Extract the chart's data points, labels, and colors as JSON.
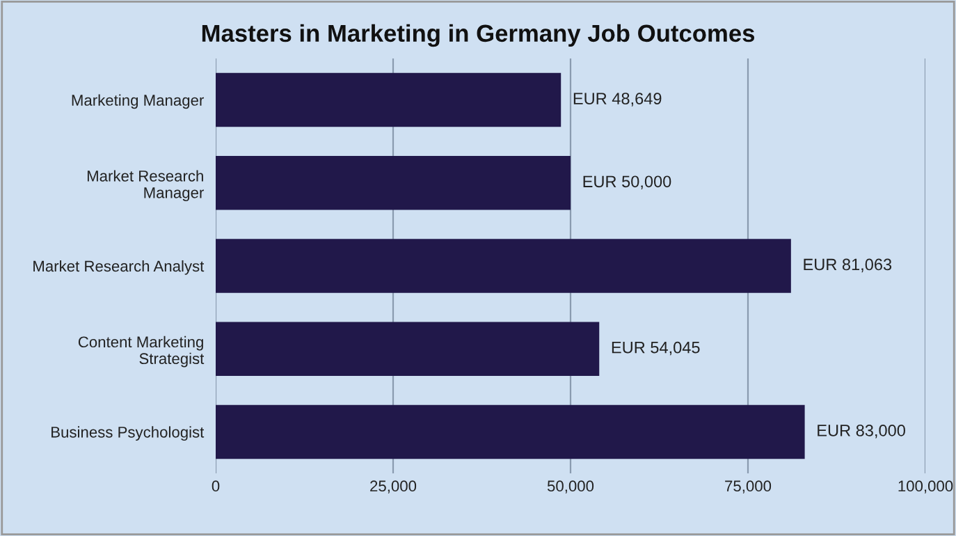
{
  "chart_data": {
    "type": "bar",
    "orientation": "horizontal",
    "title": "Masters in Marketing in Germany Job Outcomes",
    "categories": [
      "Marketing Manager",
      "Market Research\nManager",
      "Market Research Analyst",
      "Content Marketing\nStrategist",
      "Business Psychologist"
    ],
    "values": [
      48649,
      50000,
      81063,
      54045,
      83000
    ],
    "value_labels": [
      "EUR 48,649",
      "EUR 50,000",
      "EUR 81,063",
      "EUR 54,045",
      "EUR 83,000"
    ],
    "color": "#21184a",
    "xlim": [
      0,
      100000
    ],
    "xticks": [
      0,
      {
        "value": 25000,
        "label": "25,000"
      },
      {
        "value": 50000,
        "label": "50,000"
      },
      {
        "value": 75000,
        "label": "75,000"
      },
      {
        "value": 100000,
        "label": "100,000"
      }
    ],
    "grid": "x",
    "legend": false
  }
}
